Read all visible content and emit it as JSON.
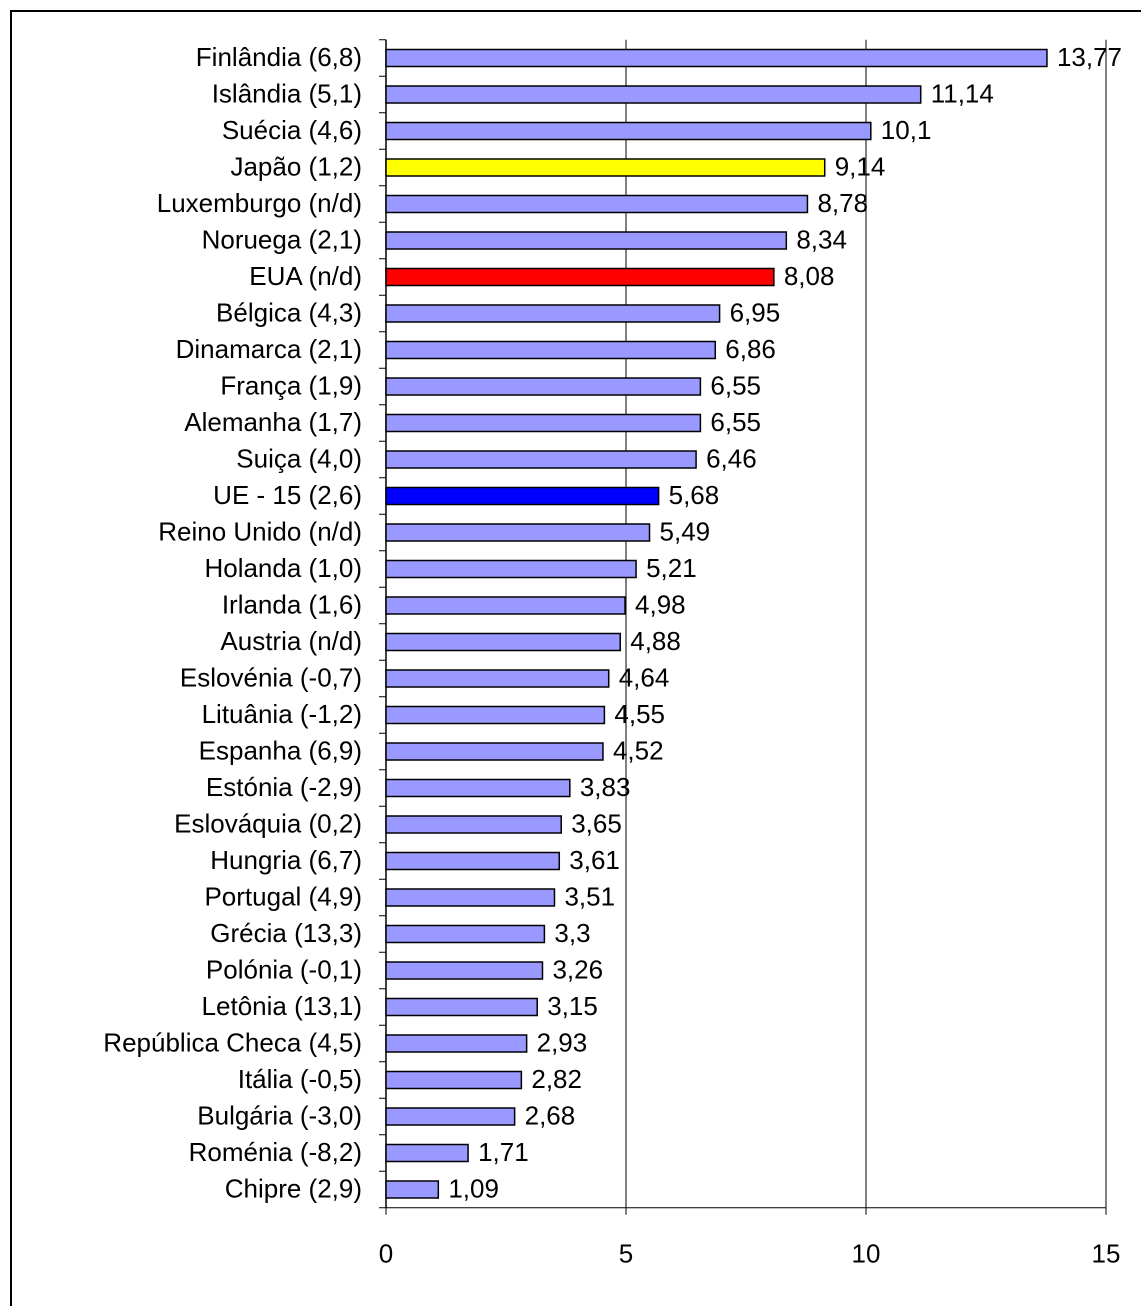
{
  "chart_data": {
    "type": "bar",
    "orientation": "horizontal",
    "categories": [
      "Finlândia (6,8)",
      "Islândia (5,1)",
      "Suécia (4,6)",
      "Japão (1,2)",
      "Luxemburgo (n/d)",
      "Noruega (2,1)",
      "EUA (n/d)",
      "Bélgica (4,3)",
      "Dinamarca (2,1)",
      "França (1,9)",
      "Alemanha (1,7)",
      "Suiça (4,0)",
      "UE - 15 (2,6)",
      "Reino Unido (n/d)",
      "Holanda (1,0)",
      "Irlanda (1,6)",
      "Austria (n/d)",
      "Eslovénia (-0,7)",
      "Lituânia (-1,2)",
      "Espanha (6,9)",
      "Estónia (-2,9)",
      "Eslováquia (0,2)",
      "Hungria (6,7)",
      "Portugal (4,9)",
      "Grécia (13,3)",
      "Polónia (-0,1)",
      "Letônia (13,1)",
      "República Checa (4,5)",
      "Itália (-0,5)",
      "Bulgária (-3,0)",
      "Roménia (-8,2)",
      "Chipre (2,9)"
    ],
    "values": [
      13.77,
      11.14,
      10.1,
      9.14,
      8.78,
      8.34,
      8.08,
      6.95,
      6.86,
      6.55,
      6.55,
      6.46,
      5.68,
      5.49,
      5.21,
      4.98,
      4.88,
      4.64,
      4.55,
      4.52,
      3.83,
      3.65,
      3.61,
      3.51,
      3.3,
      3.26,
      3.15,
      2.93,
      2.82,
      2.68,
      1.71,
      1.09
    ],
    "value_labels": [
      "13,77",
      "11,14",
      "10,1",
      "9,14",
      "8,78",
      "8,34",
      "8,08",
      "6,95",
      "6,86",
      "6,55",
      "6,55",
      "6,46",
      "5,68",
      "5,49",
      "5,21",
      "4,98",
      "4,88",
      "4,64",
      "4,55",
      "4,52",
      "3,83",
      "3,65",
      "3,61",
      "3,51",
      "3,3",
      "3,26",
      "3,15",
      "2,93",
      "2,82",
      "2,68",
      "1,71",
      "1,09"
    ],
    "colors": [
      "#9999ff",
      "#9999ff",
      "#9999ff",
      "#ffff00",
      "#9999ff",
      "#9999ff",
      "#ff0000",
      "#9999ff",
      "#9999ff",
      "#9999ff",
      "#9999ff",
      "#9999ff",
      "#0000ff",
      "#9999ff",
      "#9999ff",
      "#9999ff",
      "#9999ff",
      "#9999ff",
      "#9999ff",
      "#9999ff",
      "#9999ff",
      "#9999ff",
      "#9999ff",
      "#9999ff",
      "#9999ff",
      "#9999ff",
      "#9999ff",
      "#9999ff",
      "#9999ff",
      "#9999ff",
      "#9999ff",
      "#9999ff"
    ],
    "xlim": [
      0,
      15
    ],
    "xticks": [
      0,
      5,
      10,
      15
    ],
    "grid": true
  }
}
